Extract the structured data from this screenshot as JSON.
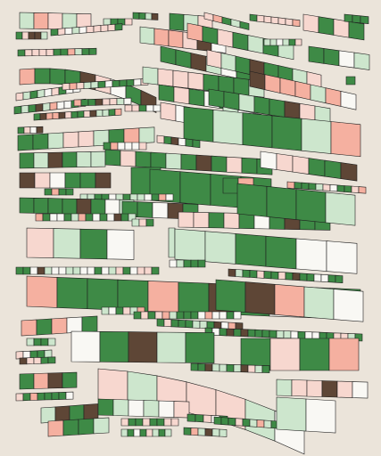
{
  "palette": {
    "background": "#ebe4da",
    "green": "#3e8a46",
    "mint": "#cde6cd",
    "blush": "#f7d7cf",
    "salmon": "#f5b0a0",
    "brown": "#5e4636",
    "white": "#f9f8f4",
    "outline": "#1e1e1e"
  },
  "seed": 20240611
}
